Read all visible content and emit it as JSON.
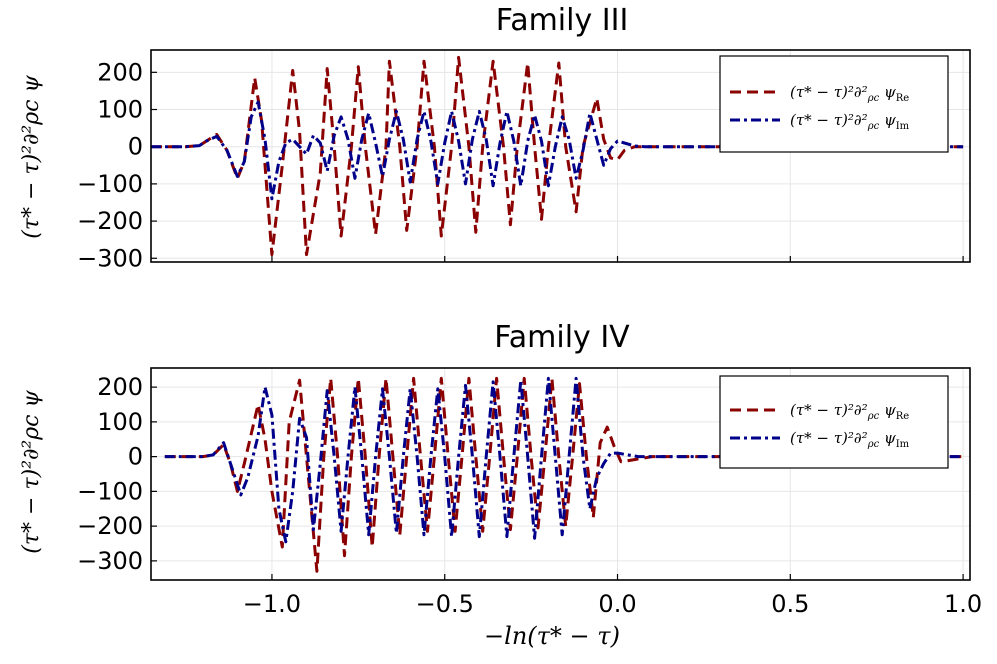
{
  "colors": {
    "re": "#8b0000",
    "im": "#00008b"
  },
  "chart_data": [
    {
      "type": "line",
      "title": "Family III",
      "ylabel": "(τ* − τ)²∂²ρc ψ",
      "xlabel": "",
      "xlim": [
        -1.35,
        1.02
      ],
      "ylim": [
        -310,
        260
      ],
      "yticks": [
        200,
        100,
        0,
        -100,
        -200,
        -300
      ],
      "ytick_labels": [
        "200",
        "100",
        "0",
        "−100",
        "−200",
        "−300"
      ],
      "xticks": [
        -1.0,
        -0.5,
        0.0,
        0.5,
        1.0
      ],
      "xtick_labels": [],
      "grid": true,
      "legend_position": "top-right",
      "series": [
        {
          "name": "(τ* − τ)²∂²ρc ψRe",
          "legend": {
            "base": "(τ* − τ)²∂²",
            "sub1": "ρc",
            "mid": " ψ",
            "sub2": "Re"
          },
          "style": "dashed",
          "color_key": "re",
          "points": [
            [
              -1.35,
              0
            ],
            [
              -1.25,
              0
            ],
            [
              -1.21,
              3
            ],
            [
              -1.19,
              15
            ],
            [
              -1.16,
              33
            ],
            [
              -1.13,
              -10
            ],
            [
              -1.1,
              -85
            ],
            [
              -1.08,
              -40
            ],
            [
              -1.05,
              185
            ],
            [
              -1.03,
              70
            ],
            [
              -1.0,
              -290
            ],
            [
              -0.97,
              -50
            ],
            [
              -0.94,
              205
            ],
            [
              -0.92,
              40
            ],
            [
              -0.9,
              -290
            ],
            [
              -0.86,
              -70
            ],
            [
              -0.84,
              210
            ],
            [
              -0.82,
              0
            ],
            [
              -0.8,
              -240
            ],
            [
              -0.77,
              0
            ],
            [
              -0.75,
              215
            ],
            [
              -0.73,
              0
            ],
            [
              -0.7,
              -235
            ],
            [
              -0.67,
              0
            ],
            [
              -0.66,
              230
            ],
            [
              -0.63,
              0
            ],
            [
              -0.61,
              -225
            ],
            [
              -0.58,
              0
            ],
            [
              -0.56,
              230
            ],
            [
              -0.53,
              0
            ],
            [
              -0.51,
              -240
            ],
            [
              -0.48,
              0
            ],
            [
              -0.46,
              240
            ],
            [
              -0.43,
              0
            ],
            [
              -0.41,
              -230
            ],
            [
              -0.39,
              0
            ],
            [
              -0.36,
              230
            ],
            [
              -0.33,
              0
            ],
            [
              -0.31,
              -210
            ],
            [
              -0.29,
              0
            ],
            [
              -0.26,
              225
            ],
            [
              -0.24,
              0
            ],
            [
              -0.22,
              -195
            ],
            [
              -0.2,
              0
            ],
            [
              -0.17,
              225
            ],
            [
              -0.15,
              0
            ],
            [
              -0.12,
              -175
            ],
            [
              -0.1,
              0
            ],
            [
              -0.06,
              130
            ],
            [
              -0.04,
              20
            ],
            [
              -0.02,
              -30
            ],
            [
              0.0,
              -35
            ],
            [
              0.02,
              -10
            ],
            [
              0.05,
              0
            ],
            [
              1.0,
              0
            ]
          ]
        },
        {
          "name": "(τ* − τ)²∂²ρc ψIm",
          "legend": {
            "base": "(τ* − τ)²∂²",
            "sub1": "ρc",
            "mid": " ψ",
            "sub2": "Im"
          },
          "style": "dashdot",
          "color_key": "im",
          "points": [
            [
              -1.35,
              0
            ],
            [
              -1.25,
              0
            ],
            [
              -1.21,
              3
            ],
            [
              -1.19,
              15
            ],
            [
              -1.16,
              28
            ],
            [
              -1.13,
              -10
            ],
            [
              -1.1,
              -80
            ],
            [
              -1.08,
              -40
            ],
            [
              -1.06,
              80
            ],
            [
              -1.04,
              120
            ],
            [
              -1.02,
              20
            ],
            [
              -1.0,
              -140
            ],
            [
              -0.98,
              -40
            ],
            [
              -0.96,
              10
            ],
            [
              -0.94,
              20
            ],
            [
              -0.92,
              0
            ],
            [
              -0.9,
              -20
            ],
            [
              -0.88,
              30
            ],
            [
              -0.86,
              10
            ],
            [
              -0.84,
              -65
            ],
            [
              -0.82,
              30
            ],
            [
              -0.8,
              80
            ],
            [
              -0.78,
              20
            ],
            [
              -0.76,
              -85
            ],
            [
              -0.74,
              20
            ],
            [
              -0.72,
              90
            ],
            [
              -0.7,
              10
            ],
            [
              -0.68,
              -80
            ],
            [
              -0.66,
              20
            ],
            [
              -0.64,
              95
            ],
            [
              -0.62,
              20
            ],
            [
              -0.6,
              -95
            ],
            [
              -0.58,
              20
            ],
            [
              -0.56,
              95
            ],
            [
              -0.54,
              15
            ],
            [
              -0.52,
              -100
            ],
            [
              -0.5,
              10
            ],
            [
              -0.48,
              95
            ],
            [
              -0.46,
              15
            ],
            [
              -0.44,
              -100
            ],
            [
              -0.42,
              20
            ],
            [
              -0.4,
              95
            ],
            [
              -0.38,
              20
            ],
            [
              -0.36,
              -105
            ],
            [
              -0.34,
              10
            ],
            [
              -0.32,
              95
            ],
            [
              -0.3,
              15
            ],
            [
              -0.28,
              -105
            ],
            [
              -0.26,
              15
            ],
            [
              -0.24,
              85
            ],
            [
              -0.22,
              15
            ],
            [
              -0.2,
              -105
            ],
            [
              -0.18,
              0
            ],
            [
              -0.16,
              80
            ],
            [
              -0.14,
              20
            ],
            [
              -0.12,
              -85
            ],
            [
              -0.1,
              -10
            ],
            [
              -0.08,
              90
            ],
            [
              -0.06,
              20
            ],
            [
              -0.04,
              -50
            ],
            [
              -0.02,
              -5
            ],
            [
              0.0,
              15
            ],
            [
              0.02,
              10
            ],
            [
              0.05,
              2
            ],
            [
              0.08,
              0
            ],
            [
              1.0,
              0
            ]
          ]
        }
      ]
    },
    {
      "type": "line",
      "title": "Family IV",
      "ylabel": "(τ* − τ)²∂²ρc ψ",
      "xlabel": "−ln(τ* − τ)",
      "xlim": [
        -1.35,
        1.02
      ],
      "ylim": [
        -355,
        255
      ],
      "yticks": [
        200,
        100,
        0,
        -100,
        -200,
        -300
      ],
      "ytick_labels": [
        "200",
        "100",
        "0",
        "−100",
        "−200",
        "−300"
      ],
      "xticks": [
        -1.0,
        -0.5,
        0.0,
        0.5,
        1.0
      ],
      "xtick_labels": [
        "−1.0",
        "−0.5",
        "0.0",
        "0.5",
        "1.0"
      ],
      "grid": true,
      "legend_position": "top-right",
      "series": [
        {
          "name": "(τ* − τ)²∂²ρc ψRe",
          "legend": {
            "base": "(τ* − τ)²∂²",
            "sub1": "ρc",
            "mid": " ψ",
            "sub2": "Re"
          },
          "style": "dashed",
          "color_key": "re",
          "points": [
            [
              -1.31,
              0
            ],
            [
              -1.2,
              0
            ],
            [
              -1.17,
              5
            ],
            [
              -1.14,
              35
            ],
            [
              -1.12,
              -20
            ],
            [
              -1.1,
              -100
            ],
            [
              -1.08,
              -20
            ],
            [
              -1.04,
              150
            ],
            [
              -1.02,
              50
            ],
            [
              -1.0,
              -100
            ],
            [
              -0.97,
              -260
            ],
            [
              -0.95,
              100
            ],
            [
              -0.92,
              220
            ],
            [
              -0.9,
              0
            ],
            [
              -0.87,
              -330
            ],
            [
              -0.85,
              0
            ],
            [
              -0.83,
              225
            ],
            [
              -0.81,
              0
            ],
            [
              -0.79,
              -285
            ],
            [
              -0.77,
              0
            ],
            [
              -0.75,
              225
            ],
            [
              -0.73,
              0
            ],
            [
              -0.71,
              -260
            ],
            [
              -0.69,
              0
            ],
            [
              -0.67,
              225
            ],
            [
              -0.65,
              0
            ],
            [
              -0.63,
              -225
            ],
            [
              -0.61,
              0
            ],
            [
              -0.59,
              225
            ],
            [
              -0.57,
              0
            ],
            [
              -0.55,
              -215
            ],
            [
              -0.53,
              0
            ],
            [
              -0.51,
              225
            ],
            [
              -0.49,
              0
            ],
            [
              -0.47,
              -215
            ],
            [
              -0.45,
              0
            ],
            [
              -0.43,
              225
            ],
            [
              -0.41,
              0
            ],
            [
              -0.39,
              -215
            ],
            [
              -0.37,
              0
            ],
            [
              -0.35,
              225
            ],
            [
              -0.33,
              0
            ],
            [
              -0.31,
              -210
            ],
            [
              -0.29,
              0
            ],
            [
              -0.27,
              225
            ],
            [
              -0.25,
              0
            ],
            [
              -0.23,
              -205
            ],
            [
              -0.21,
              0
            ],
            [
              -0.19,
              225
            ],
            [
              -0.17,
              0
            ],
            [
              -0.15,
              -200
            ],
            [
              -0.13,
              0
            ],
            [
              -0.11,
              210
            ],
            [
              -0.09,
              0
            ],
            [
              -0.07,
              -175
            ],
            [
              -0.05,
              40
            ],
            [
              -0.03,
              85
            ],
            [
              -0.01,
              30
            ],
            [
              0.01,
              -15
            ],
            [
              0.04,
              -10
            ],
            [
              0.07,
              -5
            ],
            [
              0.1,
              0
            ],
            [
              1.0,
              0
            ]
          ]
        },
        {
          "name": "(τ* − τ)²∂²ρc ψIm",
          "legend": {
            "base": "(τ* − τ)²∂²",
            "sub1": "ρc",
            "mid": " ψ",
            "sub2": "Im"
          },
          "style": "dashdot",
          "color_key": "im",
          "points": [
            [
              -1.31,
              0
            ],
            [
              -1.2,
              0
            ],
            [
              -1.17,
              5
            ],
            [
              -1.14,
              40
            ],
            [
              -1.12,
              -20
            ],
            [
              -1.09,
              -110
            ],
            [
              -1.07,
              -60
            ],
            [
              -1.04,
              60
            ],
            [
              -1.02,
              200
            ],
            [
              -1.0,
              120
            ],
            [
              -0.98,
              -150
            ],
            [
              -0.96,
              -245
            ],
            [
              -0.94,
              -100
            ],
            [
              -0.92,
              110
            ],
            [
              -0.9,
              55
            ],
            [
              -0.88,
              -210
            ],
            [
              -0.86,
              -20
            ],
            [
              -0.84,
              190
            ],
            [
              -0.82,
              0
            ],
            [
              -0.8,
              -215
            ],
            [
              -0.78,
              0
            ],
            [
              -0.76,
              200
            ],
            [
              -0.74,
              0
            ],
            [
              -0.72,
              -225
            ],
            [
              -0.7,
              0
            ],
            [
              -0.68,
              195
            ],
            [
              -0.66,
              0
            ],
            [
              -0.64,
              -220
            ],
            [
              -0.62,
              0
            ],
            [
              -0.6,
              195
            ],
            [
              -0.58,
              0
            ],
            [
              -0.56,
              -225
            ],
            [
              -0.54,
              0
            ],
            [
              -0.52,
              195
            ],
            [
              -0.5,
              0
            ],
            [
              -0.48,
              -230
            ],
            [
              -0.46,
              0
            ],
            [
              -0.44,
              205
            ],
            [
              -0.42,
              0
            ],
            [
              -0.4,
              -230
            ],
            [
              -0.38,
              0
            ],
            [
              -0.36,
              215
            ],
            [
              -0.34,
              0
            ],
            [
              -0.32,
              -230
            ],
            [
              -0.3,
              0
            ],
            [
              -0.28,
              220
            ],
            [
              -0.26,
              0
            ],
            [
              -0.24,
              -235
            ],
            [
              -0.22,
              0
            ],
            [
              -0.2,
              225
            ],
            [
              -0.18,
              0
            ],
            [
              -0.16,
              -225
            ],
            [
              -0.14,
              0
            ],
            [
              -0.12,
              225
            ],
            [
              -0.1,
              0
            ],
            [
              -0.08,
              -150
            ],
            [
              -0.06,
              -60
            ],
            [
              -0.04,
              -20
            ],
            [
              -0.02,
              10
            ],
            [
              0.0,
              10
            ],
            [
              0.03,
              5
            ],
            [
              0.06,
              0
            ],
            [
              1.0,
              0
            ]
          ]
        }
      ]
    }
  ]
}
